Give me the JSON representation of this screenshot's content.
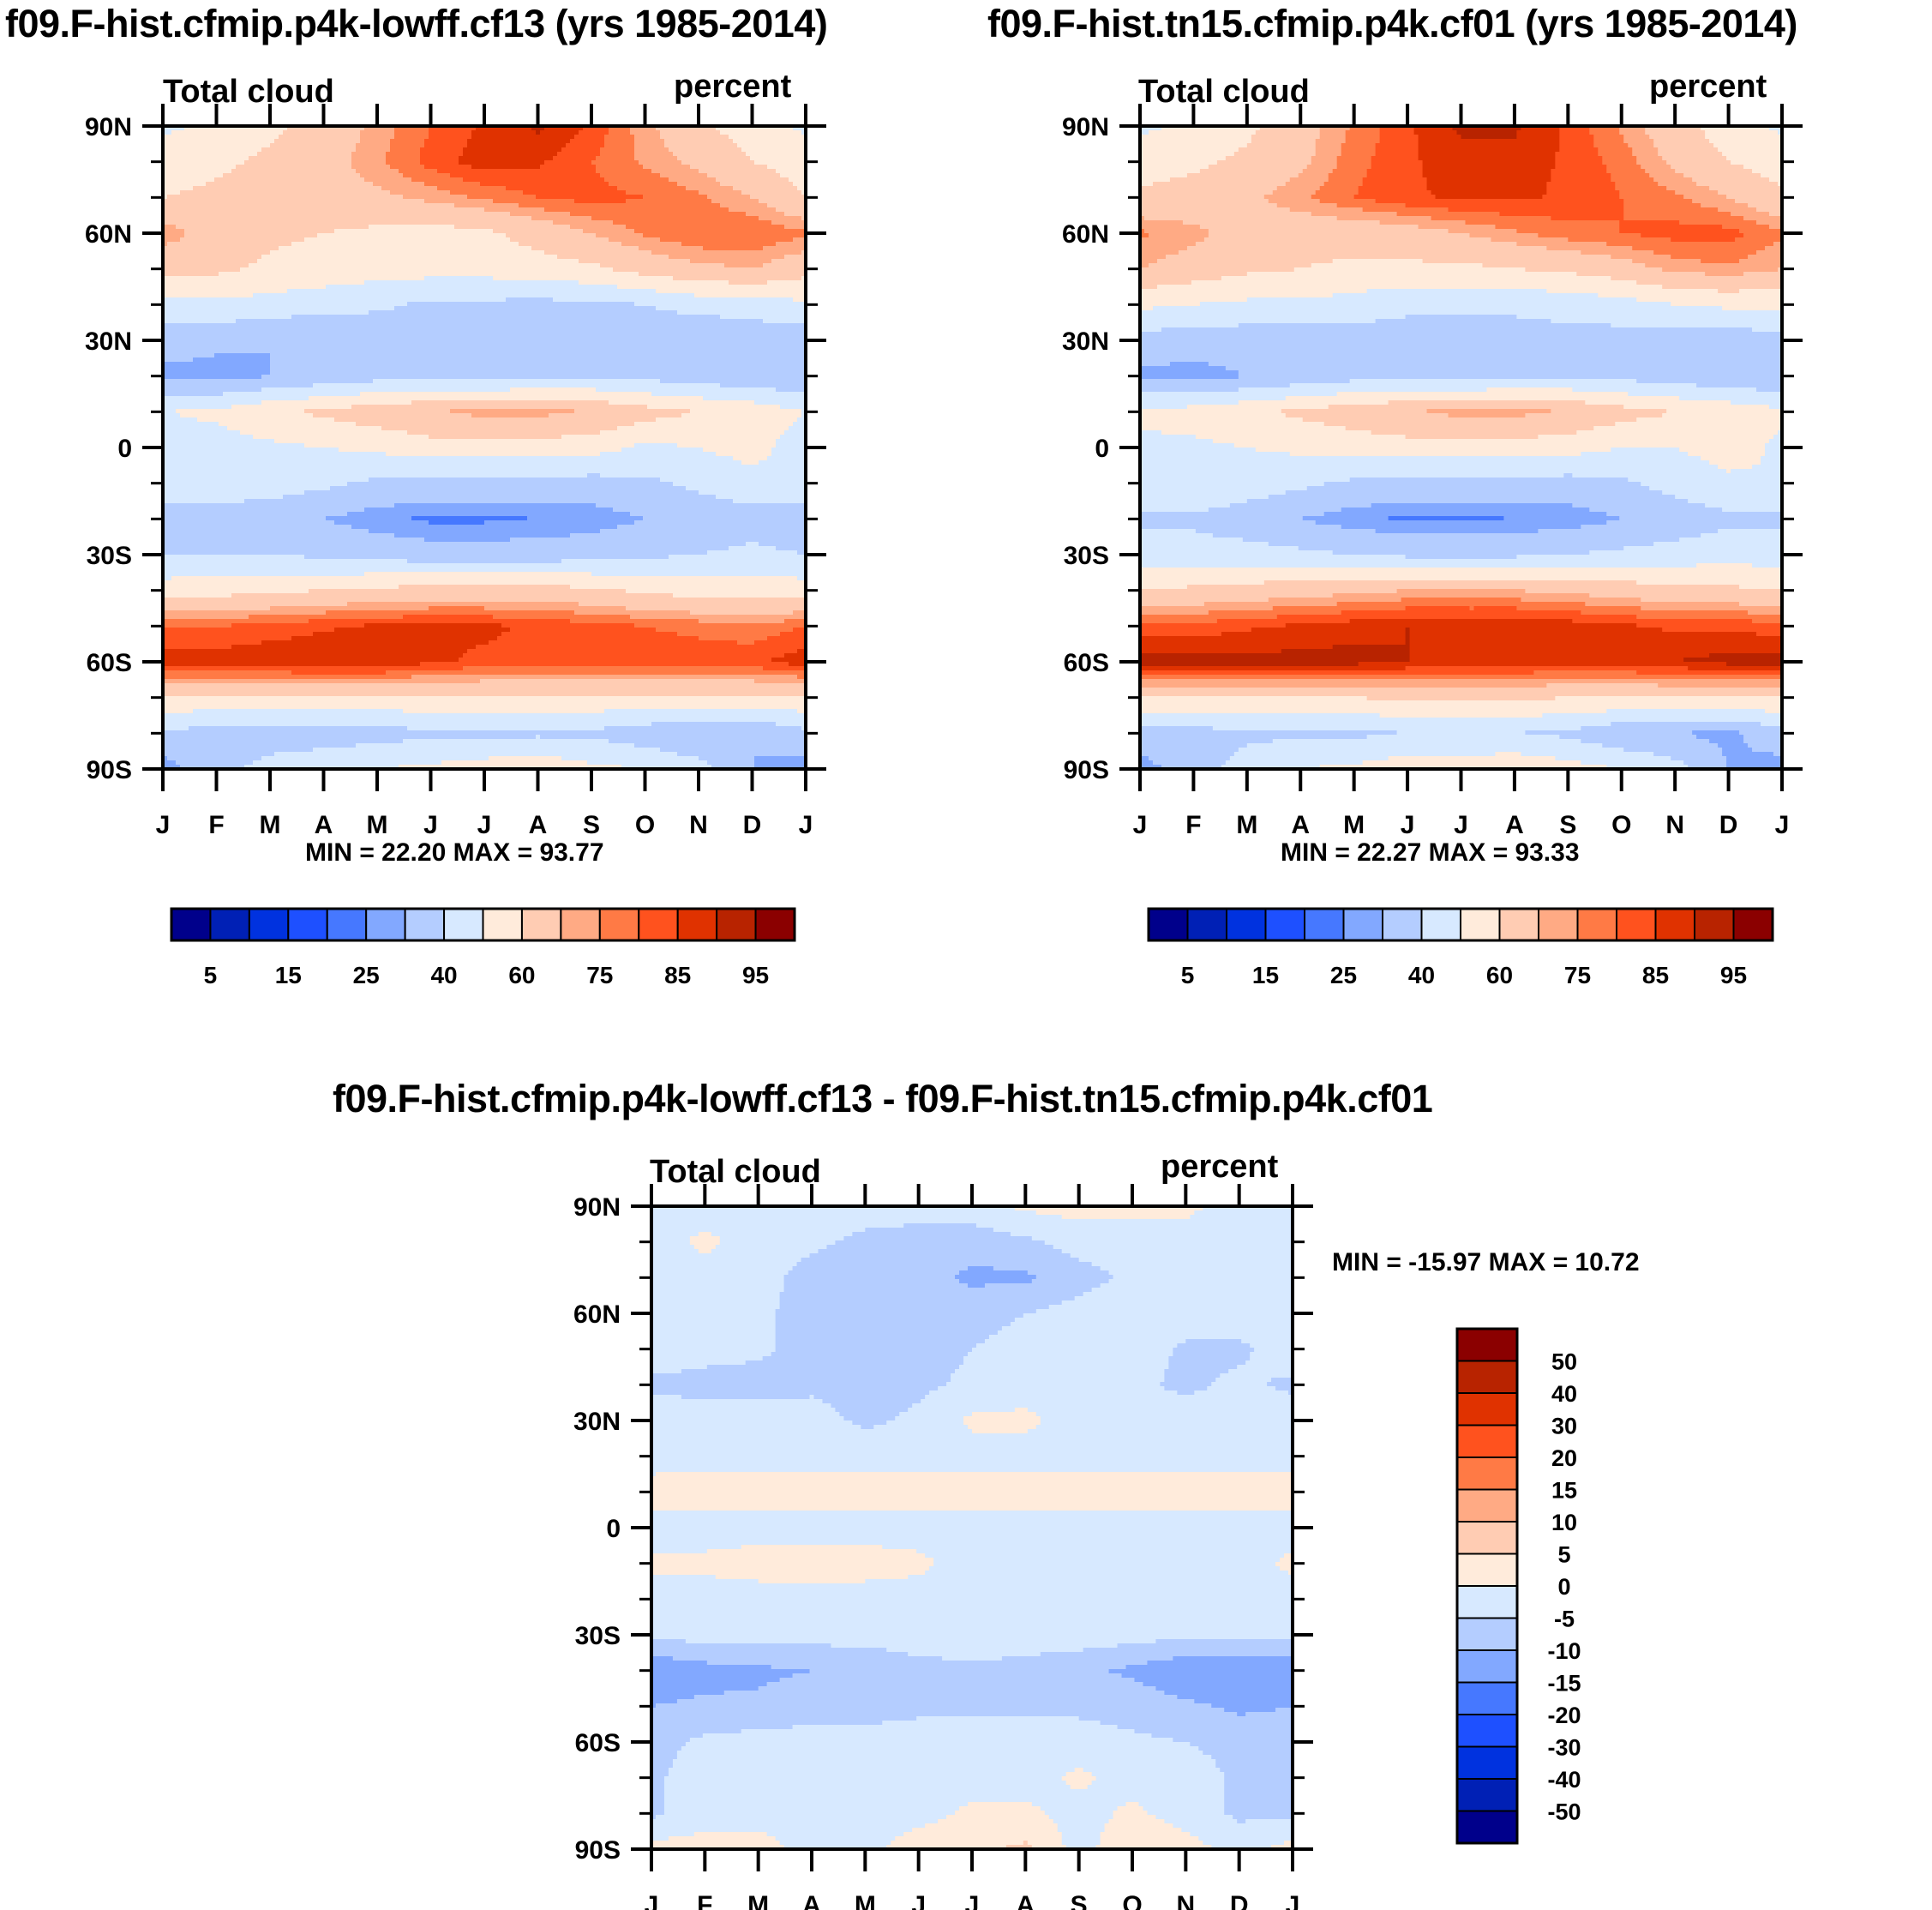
{
  "chart_data": [
    {
      "type": "heatmap",
      "id": "panel1",
      "title": "f09.F-hist.cfmip.p4k-lowff.cf13 (yrs 1985-2014)",
      "left_string": "Total cloud",
      "right_string": "percent",
      "xlabel": "",
      "ylabel": "",
      "x_tick_labels": [
        "J",
        "F",
        "M",
        "A",
        "M",
        "J",
        "J",
        "A",
        "S",
        "O",
        "N",
        "D",
        "J"
      ],
      "y_tick_labels": [
        "90N",
        "60N",
        "30N",
        "0",
        "30S",
        "60S",
        "90S"
      ],
      "ylim": [
        -90,
        90
      ],
      "min_max_label": "MIN =  22.20 MAX =  93.77",
      "min": 22.2,
      "max": 93.77,
      "colorbar": {
        "orientation": "horizontal",
        "levels": [
          5,
          10,
          15,
          20,
          25,
          30,
          40,
          50,
          60,
          70,
          75,
          80,
          85,
          90,
          95
        ],
        "labels": [
          "5",
          "15",
          "25",
          "40",
          "60",
          "75",
          "85",
          "95"
        ],
        "colors": [
          "#00008B",
          "#0020B5",
          "#0032DF",
          "#1E50FF",
          "#4678FF",
          "#82A8FF",
          "#B4CDFF",
          "#D7E9FF",
          "#FFEBDB",
          "#FFCCB3",
          "#FFAA84",
          "#FF7A45",
          "#FF521E",
          "#E03200",
          "#B82300",
          "#8B0000"
        ]
      },
      "lats": [
        90,
        80,
        70,
        60,
        50,
        40,
        30,
        20,
        10,
        0,
        -10,
        -20,
        -30,
        -40,
        -50,
        -60,
        -70,
        -80,
        -90
      ],
      "grid": [
        [
          48,
          52,
          58,
          64,
          72,
          80,
          86,
          91,
          84,
          72,
          62,
          55,
          48
        ],
        [
          55,
          58,
          62,
          66,
          74,
          82,
          88,
          86,
          80,
          74,
          68,
          60,
          55
        ],
        [
          60,
          62,
          64,
          66,
          68,
          72,
          76,
          80,
          82,
          80,
          76,
          70,
          60
        ],
        [
          74,
          66,
          62,
          60,
          58,
          56,
          58,
          64,
          70,
          76,
          80,
          80,
          76
        ],
        [
          62,
          62,
          58,
          56,
          54,
          54,
          54,
          56,
          58,
          64,
          68,
          70,
          64
        ],
        [
          48,
          48,
          46,
          44,
          42,
          38,
          38,
          37,
          38,
          40,
          44,
          46,
          48
        ],
        [
          34,
          32,
          30,
          30,
          32,
          33,
          33,
          33,
          34,
          34,
          30,
          32,
          34
        ],
        [
          28,
          27,
          30,
          33,
          36,
          36,
          36,
          37,
          38,
          37,
          34,
          33,
          30
        ],
        [
          50,
          52,
          58,
          62,
          66,
          70,
          72,
          72,
          70,
          64,
          60,
          56,
          50
        ],
        [
          44,
          46,
          48,
          50,
          52,
          56,
          56,
          56,
          54,
          48,
          50,
          54,
          44
        ],
        [
          48,
          48,
          46,
          42,
          38,
          36,
          36,
          36,
          36,
          38,
          42,
          46,
          48
        ],
        [
          34,
          34,
          32,
          30,
          26,
          24,
          24,
          25,
          26,
          30,
          34,
          36,
          34
        ],
        [
          40,
          40,
          40,
          38,
          36,
          34,
          34,
          34,
          36,
          38,
          40,
          42,
          40
        ],
        [
          55,
          56,
          58,
          60,
          62,
          64,
          64,
          64,
          62,
          58,
          56,
          55,
          55
        ],
        [
          80,
          80,
          82,
          84,
          86,
          86,
          86,
          84,
          82,
          80,
          78,
          76,
          80
        ],
        [
          88,
          88,
          89,
          90,
          90,
          86,
          84,
          84,
          84,
          84,
          84,
          84,
          88
        ],
        [
          58,
          58,
          58,
          58,
          58,
          58,
          58,
          58,
          58,
          58,
          58,
          58,
          58
        ],
        [
          38,
          36,
          34,
          34,
          36,
          38,
          38,
          38,
          38,
          34,
          30,
          30,
          38
        ],
        [
          26,
          36,
          44,
          48,
          50,
          52,
          55,
          58,
          52,
          50,
          44,
          30,
          26
        ]
      ]
    },
    {
      "type": "heatmap",
      "id": "panel2",
      "title": "f09.F-hist.tn15.cfmip.p4k.cf01 (yrs 1985-2014)",
      "left_string": "Total cloud",
      "right_string": "percent",
      "xlabel": "",
      "ylabel": "",
      "x_tick_labels": [
        "J",
        "F",
        "M",
        "A",
        "M",
        "J",
        "J",
        "A",
        "S",
        "O",
        "N",
        "D",
        "J"
      ],
      "y_tick_labels": [
        "90N",
        "60N",
        "30N",
        "0",
        "30S",
        "60S",
        "90S"
      ],
      "ylim": [
        -90,
        90
      ],
      "min_max_label": "MIN =  22.27 MAX =  93.33",
      "min": 22.27,
      "max": 93.33,
      "colorbar": {
        "orientation": "horizontal",
        "levels": [
          5,
          10,
          15,
          20,
          25,
          30,
          40,
          50,
          60,
          70,
          75,
          80,
          85,
          90,
          95
        ],
        "labels": [
          "5",
          "15",
          "25",
          "40",
          "60",
          "75",
          "85",
          "95"
        ],
        "colors": [
          "#00008B",
          "#0020B5",
          "#0032DF",
          "#1E50FF",
          "#4678FF",
          "#82A8FF",
          "#B4CDFF",
          "#D7E9FF",
          "#FFEBDB",
          "#FFCCB3",
          "#FFAA84",
          "#FF7A45",
          "#FF521E",
          "#E03200",
          "#B82300",
          "#8B0000"
        ]
      },
      "lats": [
        90,
        80,
        70,
        60,
        50,
        40,
        30,
        20,
        10,
        0,
        -10,
        -20,
        -30,
        -40,
        -50,
        -60,
        -70,
        -80,
        -90
      ],
      "grid": [
        [
          48,
          52,
          58,
          66,
          76,
          84,
          91,
          91,
          84,
          74,
          64,
          55,
          48
        ],
        [
          55,
          58,
          62,
          68,
          78,
          84,
          88,
          88,
          84,
          78,
          68,
          60,
          55
        ],
        [
          62,
          64,
          68,
          74,
          80,
          84,
          86,
          86,
          84,
          80,
          76,
          70,
          62
        ],
        [
          76,
          72,
          66,
          64,
          64,
          66,
          70,
          74,
          78,
          80,
          82,
          82,
          76
        ],
        [
          70,
          66,
          62,
          60,
          58,
          58,
          58,
          60,
          62,
          66,
          72,
          74,
          70
        ],
        [
          52,
          50,
          48,
          48,
          46,
          42,
          42,
          42,
          44,
          46,
          50,
          52,
          52
        ],
        [
          36,
          34,
          34,
          34,
          34,
          36,
          36,
          36,
          36,
          36,
          34,
          34,
          36
        ],
        [
          28,
          27,
          30,
          33,
          36,
          36,
          36,
          37,
          38,
          37,
          34,
          33,
          30
        ],
        [
          52,
          54,
          58,
          62,
          66,
          70,
          72,
          72,
          70,
          64,
          60,
          56,
          52
        ],
        [
          48,
          48,
          50,
          52,
          54,
          56,
          56,
          56,
          54,
          50,
          50,
          54,
          48
        ],
        [
          50,
          50,
          46,
          42,
          38,
          36,
          36,
          36,
          36,
          38,
          44,
          48,
          50
        ],
        [
          38,
          38,
          34,
          30,
          26,
          24,
          24,
          25,
          26,
          30,
          34,
          38,
          38
        ],
        [
          44,
          44,
          44,
          42,
          40,
          38,
          38,
          38,
          40,
          42,
          44,
          46,
          44
        ],
        [
          60,
          62,
          64,
          66,
          68,
          70,
          70,
          70,
          68,
          66,
          62,
          62,
          60
        ],
        [
          82,
          82,
          84,
          86,
          88,
          90,
          90,
          90,
          88,
          86,
          84,
          84,
          82
        ],
        [
          92,
          92,
          92,
          92,
          92,
          90,
          88,
          88,
          88,
          88,
          90,
          92,
          92
        ],
        [
          60,
          60,
          60,
          60,
          60,
          62,
          62,
          62,
          60,
          60,
          60,
          60,
          60
        ],
        [
          36,
          36,
          38,
          38,
          38,
          40,
          40,
          40,
          38,
          32,
          30,
          28,
          36
        ],
        [
          26,
          36,
          44,
          50,
          52,
          56,
          56,
          58,
          54,
          50,
          44,
          30,
          26
        ]
      ]
    },
    {
      "type": "heatmap",
      "id": "panel3",
      "title": "f09.F-hist.cfmip.p4k-lowff.cf13 - f09.F-hist.tn15.cfmip.p4k.cf01",
      "left_string": "Total cloud",
      "right_string": "percent",
      "xlabel": "",
      "ylabel": "",
      "x_tick_labels": [
        "J",
        "F",
        "M",
        "A",
        "M",
        "J",
        "J",
        "A",
        "S",
        "O",
        "N",
        "D",
        "J"
      ],
      "y_tick_labels": [
        "90N",
        "60N",
        "30N",
        "0",
        "30S",
        "60S",
        "90S"
      ],
      "ylim": [
        -90,
        90
      ],
      "min_max_label": "MIN = -15.97 MAX =  10.72",
      "min": -15.97,
      "max": 10.72,
      "colorbar": {
        "orientation": "vertical",
        "levels": [
          -50,
          -40,
          -30,
          -20,
          -15,
          -10,
          -5,
          0,
          5,
          10,
          15,
          20,
          30,
          40,
          50
        ],
        "labels": [
          "-50",
          "-40",
          "-30",
          "-20",
          "-15",
          "-10",
          "-5",
          "0",
          "5",
          "10",
          "15",
          "20",
          "30",
          "40",
          "50"
        ],
        "colors": [
          "#00008B",
          "#0020B5",
          "#0032DF",
          "#1E50FF",
          "#4678FF",
          "#82A8FF",
          "#B4CDFF",
          "#D7E9FF",
          "#FFEBDB",
          "#FFCCB3",
          "#FFAA84",
          "#FF7A45",
          "#FF521E",
          "#E03200",
          "#B82300",
          "#8B0000"
        ]
      },
      "lats": [
        90,
        80,
        70,
        60,
        50,
        40,
        30,
        20,
        10,
        0,
        -10,
        -20,
        -30,
        -40,
        -50,
        -60,
        -70,
        -80,
        -90
      ],
      "grid": [
        [
          -2,
          -2,
          -2,
          -3,
          -3,
          -3,
          -2,
          1,
          2,
          2,
          1,
          -2,
          -2
        ],
        [
          -2,
          1,
          -2,
          -4,
          -6,
          -7,
          -8,
          -6,
          -3,
          -3,
          -2,
          -2,
          -2
        ],
        [
          -2,
          -2,
          -3,
          -7,
          -8,
          -8,
          -11,
          -11,
          -7,
          -4,
          -2,
          -2,
          -2
        ],
        [
          -2,
          -2,
          -4,
          -7,
          -8,
          -7,
          -7,
          -5,
          -3,
          -2,
          -2,
          -2,
          -2
        ],
        [
          -2,
          -3,
          -4,
          -7,
          -8,
          -7,
          -5,
          -3,
          -2,
          -2,
          -6,
          -6,
          -2
        ],
        [
          -6,
          -7,
          -7,
          -6,
          -7,
          -6,
          -4,
          -2,
          -2,
          -4,
          -6,
          -4,
          -6
        ],
        [
          -2,
          -2,
          -2,
          -3,
          -6,
          -4,
          1,
          1,
          -2,
          -2,
          -3,
          -2,
          -2
        ],
        [
          -2,
          -2,
          -2,
          -2,
          -2,
          -2,
          -2,
          -2,
          -2,
          -2,
          -2,
          -2,
          -2
        ],
        [
          2,
          2,
          2,
          2,
          2,
          2,
          2,
          2,
          2,
          2,
          2,
          2,
          2
        ],
        [
          -2,
          -2,
          -2,
          -2,
          -2,
          -2,
          -2,
          -2,
          -2,
          -2,
          -2,
          -2,
          -2
        ],
        [
          1,
          1,
          2,
          2,
          2,
          1,
          -2,
          -2,
          -2,
          -2,
          -2,
          -2,
          1
        ],
        [
          -2,
          -2,
          -2,
          -2,
          -2,
          -2,
          -2,
          -2,
          -2,
          -2,
          -2,
          -2,
          -2
        ],
        [
          -4,
          -3,
          -3,
          -3,
          -3,
          -2,
          -2,
          -2,
          -2,
          -3,
          -4,
          -4,
          -4
        ],
        [
          -14,
          -12,
          -11,
          -10,
          -9,
          -7,
          -6,
          -7,
          -9,
          -11,
          -14,
          -15,
          -14
        ],
        [
          -10,
          -9,
          -9,
          -7,
          -7,
          -6,
          -6,
          -6,
          -6,
          -7,
          -9,
          -11,
          -10
        ],
        [
          -7,
          -4,
          -3,
          -3,
          -3,
          -3,
          -3,
          -3,
          -3,
          -4,
          -5,
          -7,
          -7
        ],
        [
          -6,
          -2,
          -2,
          -2,
          -2,
          -2,
          -2,
          -2,
          1,
          -2,
          -2,
          -6,
          -6
        ],
        [
          -6,
          -2,
          -2,
          -2,
          -2,
          -2,
          1,
          1,
          -2,
          1,
          -2,
          -6,
          -6
        ],
        [
          2,
          2,
          2,
          -2,
          -2,
          3,
          4,
          6,
          -2,
          4,
          2,
          -2,
          2
        ]
      ]
    }
  ]
}
